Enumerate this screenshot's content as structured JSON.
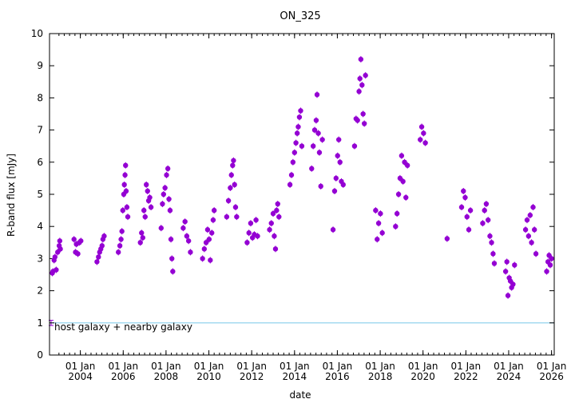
{
  "chart_data": {
    "type": "scatter",
    "title": "ON_325",
    "xlabel": "date",
    "ylabel": "R-band flux [mJy]",
    "xlim": [
      "2002-07-24",
      "2026-02-16"
    ],
    "ylim": [
      0,
      10
    ],
    "yticks": [
      0,
      1,
      2,
      3,
      4,
      5,
      6,
      7,
      8,
      9,
      10
    ],
    "xticks": [
      {
        "date": "2004-01-01",
        "line1": "01 Jan",
        "line2": "2004"
      },
      {
        "date": "2006-01-01",
        "line1": "01 Jan",
        "line2": "2006"
      },
      {
        "date": "2008-01-01",
        "line1": "01 Jan",
        "line2": "2008"
      },
      {
        "date": "2010-01-01",
        "line1": "01 Jan",
        "line2": "2010"
      },
      {
        "date": "2012-01-01",
        "line1": "01 Jan",
        "line2": "2012"
      },
      {
        "date": "2014-01-01",
        "line1": "01 Jan",
        "line2": "2014"
      },
      {
        "date": "2016-01-01",
        "line1": "01 Jan",
        "line2": "2016"
      },
      {
        "date": "2018-01-01",
        "line1": "01 Jan",
        "line2": "2018"
      },
      {
        "date": "2020-01-01",
        "line1": "01 Jan",
        "line2": "2020"
      },
      {
        "date": "2022-01-01",
        "line1": "01 Jan",
        "line2": "2022"
      },
      {
        "date": "2024-01-01",
        "line1": "01 Jan",
        "line2": "2024"
      },
      {
        "date": "2026-01-01",
        "line1": "01 Jan",
        "line2": "2026"
      }
    ],
    "grid": false,
    "point_color": "#9400d3",
    "reference_line": {
      "label": "host galaxy + nearby galaxy",
      "value": 1.0,
      "error": 0.08,
      "color": "#87ceeb"
    },
    "series": [
      {
        "points": [
          [
            "2002-09-10",
            2.55
          ],
          [
            "2002-09-20",
            2.6
          ],
          [
            "2002-10-10",
            2.95
          ],
          [
            "2002-10-25",
            3.05
          ],
          [
            "2002-11-15",
            2.65
          ],
          [
            "2002-12-10",
            3.2
          ],
          [
            "2003-01-05",
            3.4
          ],
          [
            "2003-01-15",
            3.55
          ],
          [
            "2003-01-25",
            3.3
          ],
          [
            "2003-09-15",
            3.6
          ],
          [
            "2003-10-10",
            3.2
          ],
          [
            "2003-10-25",
            3.45
          ],
          [
            "2003-11-20",
            3.15
          ],
          [
            "2003-12-15",
            3.5
          ],
          [
            "2004-01-10",
            3.55
          ],
          [
            "2004-10-10",
            2.9
          ],
          [
            "2004-11-05",
            3.05
          ],
          [
            "2004-11-25",
            3.2
          ],
          [
            "2004-12-15",
            3.3
          ],
          [
            "2005-01-05",
            3.4
          ],
          [
            "2005-01-20",
            3.6
          ],
          [
            "2005-02-10",
            3.7
          ],
          [
            "2005-10-10",
            3.2
          ],
          [
            "2005-11-05",
            3.4
          ],
          [
            "2005-11-25",
            3.6
          ],
          [
            "2005-12-10",
            3.85
          ],
          [
            "2005-12-25",
            4.5
          ],
          [
            "2006-01-10",
            5.0
          ],
          [
            "2006-01-20",
            5.3
          ],
          [
            "2006-02-01",
            5.6
          ],
          [
            "2006-02-10",
            5.9
          ],
          [
            "2006-02-20",
            5.1
          ],
          [
            "2006-03-05",
            4.6
          ],
          [
            "2006-03-20",
            4.3
          ],
          [
            "2006-10-20",
            3.5
          ],
          [
            "2006-11-10",
            3.8
          ],
          [
            "2006-12-01",
            3.65
          ],
          [
            "2006-12-20",
            4.5
          ],
          [
            "2007-01-10",
            4.3
          ],
          [
            "2007-01-30",
            5.3
          ],
          [
            "2007-02-20",
            5.1
          ],
          [
            "2007-03-10",
            4.8
          ],
          [
            "2007-03-30",
            4.9
          ],
          [
            "2007-04-20",
            4.6
          ],
          [
            "2007-10-10",
            3.95
          ],
          [
            "2007-11-01",
            4.7
          ],
          [
            "2007-11-20",
            5.0
          ],
          [
            "2007-12-15",
            5.2
          ],
          [
            "2008-01-10",
            5.6
          ],
          [
            "2008-02-01",
            5.8
          ],
          [
            "2008-02-20",
            4.85
          ],
          [
            "2008-03-10",
            4.5
          ],
          [
            "2008-03-25",
            3.6
          ],
          [
            "2008-04-10",
            3.0
          ],
          [
            "2008-04-25",
            2.6
          ],
          [
            "2008-10-20",
            3.95
          ],
          [
            "2008-11-20",
            4.15
          ],
          [
            "2008-12-20",
            3.7
          ],
          [
            "2009-01-20",
            3.55
          ],
          [
            "2009-02-20",
            3.2
          ],
          [
            "2009-09-15",
            3.0
          ],
          [
            "2009-10-15",
            3.3
          ],
          [
            "2009-11-15",
            3.5
          ],
          [
            "2009-12-10",
            3.9
          ],
          [
            "2010-01-05",
            3.6
          ],
          [
            "2010-01-25",
            2.95
          ],
          [
            "2010-02-20",
            3.8
          ],
          [
            "2010-03-15",
            4.2
          ],
          [
            "2010-04-01",
            4.5
          ],
          [
            "2010-11-01",
            4.3
          ],
          [
            "2010-12-01",
            4.8
          ],
          [
            "2011-01-01",
            5.2
          ],
          [
            "2011-01-20",
            5.6
          ],
          [
            "2011-02-10",
            5.9
          ],
          [
            "2011-02-25",
            6.05
          ],
          [
            "2011-03-15",
            5.3
          ],
          [
            "2011-04-01",
            4.6
          ],
          [
            "2011-04-20",
            4.3
          ],
          [
            "2011-10-15",
            3.5
          ],
          [
            "2011-11-15",
            3.8
          ],
          [
            "2011-12-15",
            4.1
          ],
          [
            "2012-01-15",
            3.65
          ],
          [
            "2012-02-15",
            3.75
          ],
          [
            "2012-03-15",
            4.2
          ],
          [
            "2012-04-10",
            3.7
          ],
          [
            "2012-11-01",
            3.9
          ],
          [
            "2012-12-01",
            4.1
          ],
          [
            "2013-01-01",
            4.4
          ],
          [
            "2013-01-20",
            3.7
          ],
          [
            "2013-02-10",
            3.3
          ],
          [
            "2013-03-01",
            4.5
          ],
          [
            "2013-03-20",
            4.7
          ],
          [
            "2013-04-10",
            4.3
          ],
          [
            "2013-10-15",
            5.3
          ],
          [
            "2013-11-10",
            5.6
          ],
          [
            "2013-12-05",
            6.0
          ],
          [
            "2014-01-01",
            6.3
          ],
          [
            "2014-01-25",
            6.6
          ],
          [
            "2014-02-15",
            6.9
          ],
          [
            "2014-03-05",
            7.1
          ],
          [
            "2014-03-25",
            7.4
          ],
          [
            "2014-04-15",
            7.6
          ],
          [
            "2014-05-05",
            6.5
          ],
          [
            "2014-10-20",
            5.8
          ],
          [
            "2014-11-15",
            6.5
          ],
          [
            "2014-12-10",
            7.0
          ],
          [
            "2015-01-05",
            7.3
          ],
          [
            "2015-01-20",
            8.1
          ],
          [
            "2015-02-10",
            6.9
          ],
          [
            "2015-03-01",
            6.3
          ],
          [
            "2015-03-25",
            5.25
          ],
          [
            "2015-04-20",
            6.7
          ],
          [
            "2015-10-20",
            3.9
          ],
          [
            "2015-11-15",
            5.1
          ],
          [
            "2015-12-10",
            5.5
          ],
          [
            "2016-01-05",
            6.2
          ],
          [
            "2016-01-25",
            6.7
          ],
          [
            "2016-02-15",
            6.0
          ],
          [
            "2016-03-10",
            5.4
          ],
          [
            "2016-04-10",
            5.3
          ],
          [
            "2016-10-20",
            6.5
          ],
          [
            "2016-11-15",
            7.35
          ],
          [
            "2016-12-10",
            7.3
          ],
          [
            "2017-01-05",
            8.2
          ],
          [
            "2017-01-20",
            8.6
          ],
          [
            "2017-02-05",
            9.2
          ],
          [
            "2017-02-25",
            8.4
          ],
          [
            "2017-03-15",
            7.5
          ],
          [
            "2017-04-05",
            7.2
          ],
          [
            "2017-04-25",
            8.7
          ],
          [
            "2017-10-15",
            4.5
          ],
          [
            "2017-11-10",
            3.6
          ],
          [
            "2017-12-05",
            4.1
          ],
          [
            "2018-01-05",
            4.4
          ],
          [
            "2018-02-05",
            3.8
          ],
          [
            "2018-09-20",
            4.0
          ],
          [
            "2018-10-15",
            4.4
          ],
          [
            "2018-11-10",
            5.0
          ],
          [
            "2018-12-05",
            5.5
          ],
          [
            "2019-01-01",
            6.2
          ],
          [
            "2019-01-25",
            5.4
          ],
          [
            "2019-02-20",
            6.0
          ],
          [
            "2019-03-15",
            4.9
          ],
          [
            "2019-04-10",
            5.9
          ],
          [
            "2019-11-15",
            6.7
          ],
          [
            "2019-12-10",
            7.1
          ],
          [
            "2020-01-10",
            6.9
          ],
          [
            "2020-02-10",
            6.6
          ],
          [
            "2021-02-15",
            3.62
          ],
          [
            "2021-10-20",
            4.6
          ],
          [
            "2021-11-20",
            5.1
          ],
          [
            "2021-12-20",
            4.9
          ],
          [
            "2022-01-20",
            4.3
          ],
          [
            "2022-02-20",
            3.9
          ],
          [
            "2022-03-20",
            4.5
          ],
          [
            "2022-10-15",
            4.1
          ],
          [
            "2022-11-15",
            4.5
          ],
          [
            "2022-12-15",
            4.7
          ],
          [
            "2023-01-15",
            4.2
          ],
          [
            "2023-02-15",
            3.7
          ],
          [
            "2023-03-15",
            3.5
          ],
          [
            "2023-04-10",
            3.15
          ],
          [
            "2023-05-01",
            2.85
          ],
          [
            "2023-11-10",
            2.6
          ],
          [
            "2023-12-01",
            2.9
          ],
          [
            "2023-12-20",
            1.85
          ],
          [
            "2024-01-10",
            2.4
          ],
          [
            "2024-01-30",
            2.3
          ],
          [
            "2024-02-20",
            2.1
          ],
          [
            "2024-03-15",
            2.2
          ],
          [
            "2024-04-10",
            2.8
          ],
          [
            "2024-10-15",
            3.9
          ],
          [
            "2024-11-10",
            4.2
          ],
          [
            "2024-12-05",
            3.7
          ],
          [
            "2025-01-01",
            4.35
          ],
          [
            "2025-01-25",
            3.5
          ],
          [
            "2025-02-20",
            4.6
          ],
          [
            "2025-03-15",
            3.9
          ],
          [
            "2025-04-10",
            3.15
          ],
          [
            "2025-10-10",
            2.6
          ],
          [
            "2025-11-01",
            2.9
          ],
          [
            "2025-11-20",
            3.1
          ],
          [
            "2025-12-10",
            2.8
          ],
          [
            "2026-01-01",
            3.0
          ]
        ]
      }
    ]
  }
}
